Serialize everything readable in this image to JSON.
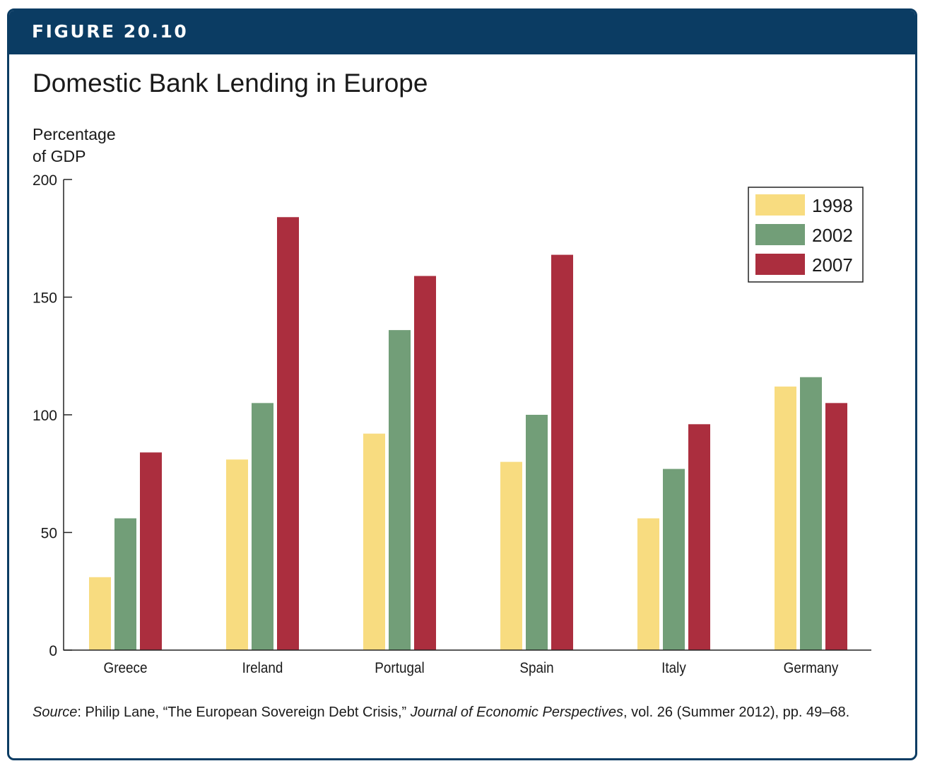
{
  "figure_label": "FIGURE 20.10",
  "source": {
    "label": "Source",
    "author_text": ": Philip Lane, “The European Sovereign Debt Crisis,” ",
    "journal": "Journal of Economic Perspectives",
    "rest": ", vol. 26 (Summer 2012), pp. 49–68."
  },
  "colors": {
    "1998": "#f8dc80",
    "2002": "#729e78",
    "2007": "#ab2e3e",
    "banner": "#0b3c63"
  },
  "chart_data": {
    "type": "bar",
    "title": "Domestic Bank Lending in Europe",
    "ylabel_lines": [
      "Percentage",
      "of GDP"
    ],
    "xlabel": "",
    "ylim": [
      0,
      200
    ],
    "yticks": [
      0,
      50,
      100,
      150,
      200
    ],
    "categories": [
      "Greece",
      "Ireland",
      "Portugal",
      "Spain",
      "Italy",
      "Germany"
    ],
    "series": [
      {
        "name": "1998",
        "values": [
          31,
          81,
          92,
          80,
          56,
          112
        ]
      },
      {
        "name": "2002",
        "values": [
          56,
          105,
          136,
          100,
          77,
          116
        ]
      },
      {
        "name": "2007",
        "values": [
          84,
          184,
          159,
          168,
          96,
          105
        ]
      }
    ],
    "legend_position": "top-right",
    "grid": false
  }
}
